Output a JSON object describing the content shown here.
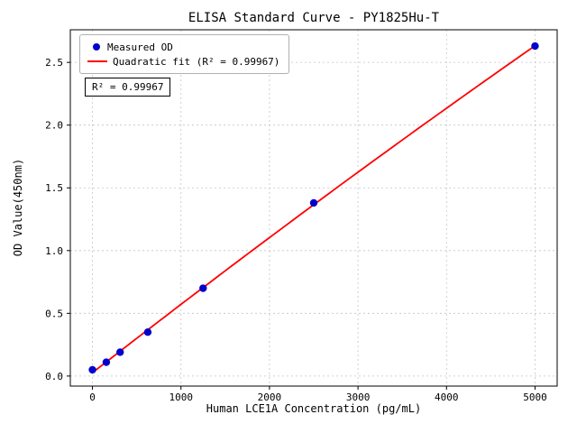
{
  "figure": {
    "title": "ELISA Standard Curve - PY1825Hu-T",
    "xlabel": "Human LCE1A Concentration (pg/mL)",
    "ylabel": "OD Value(450nm)",
    "annotation": "R² = 0.99967",
    "legend": {
      "measured": "Measured OD",
      "fit": "Quadratic fit (R² = 0.99967)"
    }
  },
  "chart_data": {
    "type": "scatter",
    "title": "ELISA Standard Curve - PY1825Hu-T",
    "xlabel": "Human LCE1A Concentration (pg/mL)",
    "ylabel": "OD Value(450nm)",
    "series": [
      {
        "name": "Measured OD",
        "type": "scatter",
        "color": "#0000cd",
        "x": [
          0,
          156.25,
          312.5,
          625,
          1250,
          2500,
          5000
        ],
        "y": [
          0.05,
          0.11,
          0.19,
          0.35,
          0.7,
          1.38,
          2.63
        ]
      },
      {
        "name": "Quadratic fit (R² = 0.99967)",
        "type": "line",
        "color": "#ff0000",
        "fit": "quadratic",
        "r_squared": 0.99967
      }
    ],
    "xticks": [
      0,
      1000,
      2000,
      3000,
      4000,
      5000
    ],
    "yticks": [
      0.0,
      0.5,
      1.0,
      1.5,
      2.0,
      2.5
    ],
    "xlim": [
      -250,
      5250
    ],
    "ylim": [
      -0.08,
      2.76
    ],
    "grid": true,
    "grid_style": "dotted",
    "legend_position": "upper left"
  }
}
